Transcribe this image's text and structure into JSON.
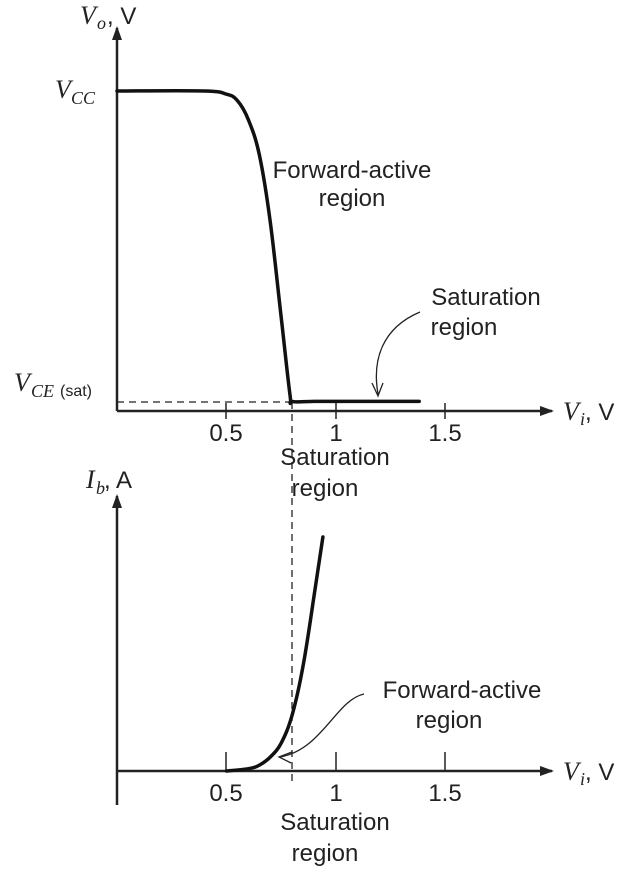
{
  "chart_data": [
    {
      "type": "line",
      "title": "",
      "y_axis_label": {
        "symbol": "V",
        "subscript": "o",
        "unit": ", V"
      },
      "x_axis_label": {
        "symbol": "V",
        "subscript": "i",
        "unit": ", V"
      },
      "x_ticks": [
        "0.5",
        "1",
        "1.5"
      ],
      "y_ticks": [
        {
          "symbol": "V",
          "subscript": "CC",
          "suffix": ""
        },
        {
          "symbol": "V",
          "subscript": "CE",
          "suffix": "(sat)"
        }
      ],
      "xlim": [
        0,
        2.0
      ],
      "ylim": [
        0,
        1.2
      ],
      "series": [
        {
          "x": [
            0,
            0.4,
            0.5,
            0.55,
            0.6,
            0.65,
            0.7,
            0.75,
            0.79,
            0.8,
            0.9,
            1.0,
            1.2,
            1.38
          ],
          "y": [
            1.0,
            1.0,
            0.99,
            0.97,
            0.91,
            0.8,
            0.59,
            0.29,
            0.05,
            0.03,
            0.03,
            0.03,
            0.03,
            0.03
          ]
        }
      ],
      "annotations": [
        {
          "lines": [
            "Forward-active",
            "region"
          ]
        },
        {
          "lines": [
            "Saturation",
            "region"
          ]
        },
        {
          "lines": [
            "Saturation",
            "region"
          ]
        }
      ]
    },
    {
      "type": "line",
      "title": "",
      "y_axis_label": {
        "symbol": "I",
        "subscript": "b",
        "unit": ", A"
      },
      "x_axis_label": {
        "symbol": "V",
        "subscript": "i",
        "unit": ", V"
      },
      "x_ticks": [
        "0.5",
        "1",
        "1.5"
      ],
      "xlim": [
        0,
        2.0
      ],
      "ylim": [
        0,
        1.2
      ],
      "series": [
        {
          "x": [
            0.5,
            0.6,
            0.65,
            0.7,
            0.75,
            0.8,
            0.85,
            0.9,
            0.94
          ],
          "y": [
            0.0,
            0.01,
            0.025,
            0.06,
            0.12,
            0.24,
            0.45,
            0.75,
            1.0
          ]
        }
      ],
      "annotations": [
        {
          "lines": [
            "Forward-active",
            "region"
          ]
        },
        {
          "lines": [
            "Saturation",
            "region"
          ]
        }
      ]
    }
  ]
}
